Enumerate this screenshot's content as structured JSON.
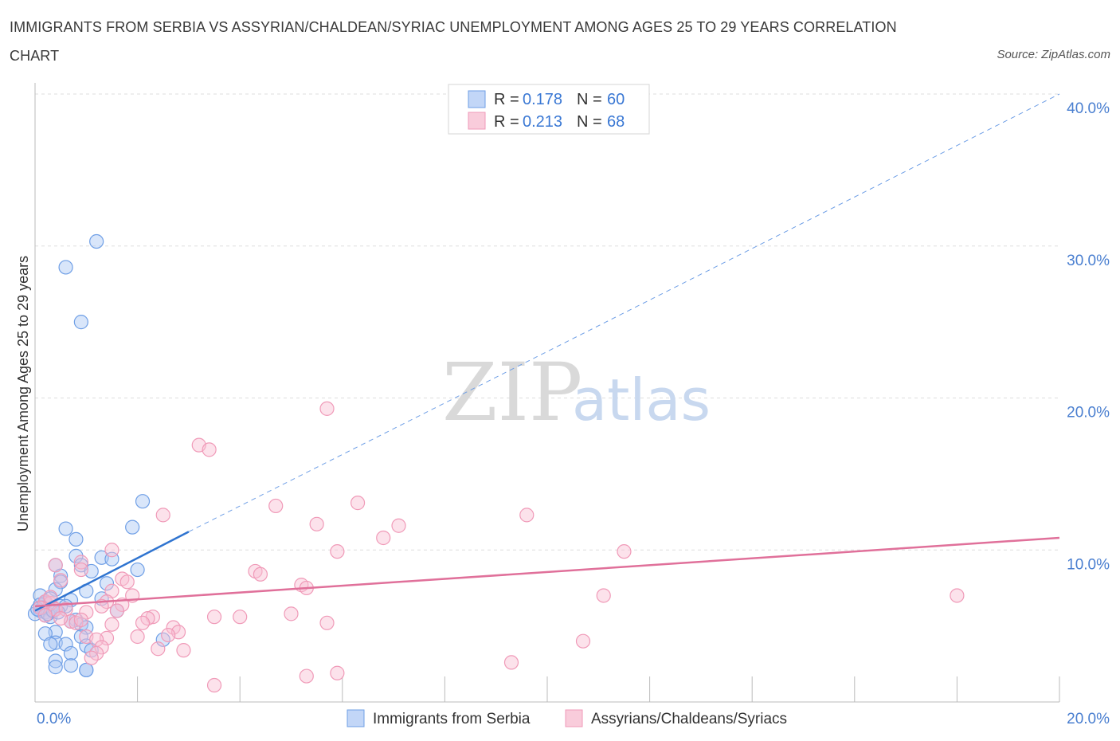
{
  "header": {
    "title": "IMMIGRANTS FROM SERBIA VS ASSYRIAN/CHALDEAN/SYRIAC UNEMPLOYMENT AMONG AGES 25 TO 29 YEARS CORRELATION CHART",
    "source": "Source: ZipAtlas.com"
  },
  "watermark": {
    "zip": "ZIP",
    "atlas": "atlas"
  },
  "legend_top": {
    "rows": [
      {
        "r_label": "R = ",
        "r_value": "0.178",
        "n_label": "N = ",
        "n_value": "60",
        "color": "#6f9fe6"
      },
      {
        "r_label": "R = ",
        "r_value": "0.213",
        "n_label": "N = ",
        "n_value": "68",
        "color": "#f09ab8"
      }
    ]
  },
  "chart_data": {
    "type": "scatter",
    "title": "IMMIGRANTS FROM SERBIA VS ASSYRIAN/CHALDEAN/SYRIAC UNEMPLOYMENT AMONG AGES 25 TO 29 YEARS CORRELATION CHART",
    "xlabel": "",
    "ylabel": "Unemployment Among Ages 25 to 29 years",
    "xlim": [
      0,
      20
    ],
    "ylim": [
      0,
      40
    ],
    "x_tick_labels": [
      "0.0%",
      "20.0%"
    ],
    "y_ticks": [
      10,
      20,
      30,
      40
    ],
    "y_tick_labels": [
      "10.0%",
      "20.0%",
      "30.0%",
      "40.0%"
    ],
    "grid": true,
    "legend_position": "bottom",
    "series": [
      {
        "name": "Immigrants from Serbia",
        "color": "#6f9fe6",
        "points": [
          [
            1.2,
            30.3
          ],
          [
            0.6,
            28.6
          ],
          [
            0.9,
            25.0
          ],
          [
            2.1,
            13.2
          ],
          [
            1.9,
            11.5
          ],
          [
            0.6,
            11.4
          ],
          [
            0.8,
            10.7
          ],
          [
            0.8,
            9.6
          ],
          [
            1.3,
            9.5
          ],
          [
            1.5,
            9.4
          ],
          [
            0.4,
            9.0
          ],
          [
            0.9,
            9.0
          ],
          [
            2.0,
            8.7
          ],
          [
            1.1,
            8.6
          ],
          [
            0.5,
            8.3
          ],
          [
            0.5,
            7.9
          ],
          [
            1.4,
            7.8
          ],
          [
            0.4,
            7.4
          ],
          [
            1.0,
            7.3
          ],
          [
            0.1,
            7.0
          ],
          [
            0.3,
            6.8
          ],
          [
            0.7,
            6.7
          ],
          [
            1.3,
            6.8
          ],
          [
            0.2,
            6.5
          ],
          [
            0.1,
            6.2
          ],
          [
            0.5,
            6.3
          ],
          [
            0.6,
            6.3
          ],
          [
            0.3,
            6.1
          ],
          [
            0.1,
            6.0
          ],
          [
            0.2,
            5.9
          ],
          [
            1.6,
            6.0
          ],
          [
            0.0,
            5.8
          ],
          [
            0.2,
            5.7
          ],
          [
            0.3,
            5.6
          ],
          [
            0.8,
            5.4
          ],
          [
            0.7,
            5.3
          ],
          [
            0.9,
            5.1
          ],
          [
            1.0,
            4.9
          ],
          [
            0.4,
            4.6
          ],
          [
            0.2,
            4.5
          ],
          [
            0.9,
            4.3
          ],
          [
            2.5,
            4.1
          ],
          [
            0.4,
            3.9
          ],
          [
            0.3,
            3.8
          ],
          [
            0.6,
            3.8
          ],
          [
            1.0,
            3.7
          ],
          [
            1.1,
            3.4
          ],
          [
            0.7,
            3.2
          ],
          [
            0.4,
            2.7
          ],
          [
            0.4,
            2.3
          ],
          [
            0.7,
            2.4
          ],
          [
            1.0,
            2.1
          ],
          [
            1.0,
            2.1
          ],
          [
            0.1,
            6.4
          ],
          [
            0.2,
            6.6
          ],
          [
            0.15,
            6.2
          ],
          [
            0.25,
            5.8
          ],
          [
            0.05,
            6.1
          ],
          [
            0.35,
            6.0
          ],
          [
            0.45,
            5.9
          ]
        ]
      },
      {
        "name": "Assyrians/Chaldeans/Syriacs",
        "color": "#f09ab8",
        "points": [
          [
            5.7,
            19.3
          ],
          [
            3.2,
            16.9
          ],
          [
            3.4,
            16.6
          ],
          [
            6.3,
            13.1
          ],
          [
            4.7,
            12.9
          ],
          [
            9.6,
            12.3
          ],
          [
            2.5,
            12.3
          ],
          [
            5.5,
            11.7
          ],
          [
            7.1,
            11.6
          ],
          [
            6.8,
            10.8
          ],
          [
            5.9,
            9.9
          ],
          [
            11.5,
            9.9
          ],
          [
            1.5,
            10.0
          ],
          [
            0.4,
            9.0
          ],
          [
            0.9,
            9.2
          ],
          [
            0.9,
            8.7
          ],
          [
            4.3,
            8.6
          ],
          [
            4.4,
            8.4
          ],
          [
            1.7,
            8.1
          ],
          [
            0.5,
            8.0
          ],
          [
            1.8,
            7.9
          ],
          [
            5.2,
            7.7
          ],
          [
            5.3,
            7.5
          ],
          [
            1.5,
            7.3
          ],
          [
            1.9,
            7.0
          ],
          [
            11.1,
            7.0
          ],
          [
            18.0,
            7.0
          ],
          [
            1.4,
            6.6
          ],
          [
            1.7,
            6.4
          ],
          [
            1.3,
            6.3
          ],
          [
            0.2,
            6.6
          ],
          [
            0.3,
            6.5
          ],
          [
            0.1,
            6.2
          ],
          [
            0.4,
            6.1
          ],
          [
            5.0,
            5.8
          ],
          [
            2.3,
            5.6
          ],
          [
            2.2,
            5.5
          ],
          [
            3.5,
            5.6
          ],
          [
            4.0,
            5.6
          ],
          [
            0.7,
            5.3
          ],
          [
            0.8,
            5.2
          ],
          [
            2.1,
            5.2
          ],
          [
            1.5,
            5.1
          ],
          [
            5.7,
            5.2
          ],
          [
            2.7,
            4.9
          ],
          [
            2.8,
            4.6
          ],
          [
            2.6,
            4.4
          ],
          [
            1.0,
            4.3
          ],
          [
            2.0,
            4.3
          ],
          [
            1.4,
            4.2
          ],
          [
            1.2,
            4.1
          ],
          [
            10.7,
            4.0
          ],
          [
            1.3,
            3.6
          ],
          [
            2.4,
            3.5
          ],
          [
            2.9,
            3.4
          ],
          [
            1.2,
            3.2
          ],
          [
            1.1,
            2.9
          ],
          [
            9.3,
            2.6
          ],
          [
            5.9,
            1.9
          ],
          [
            5.3,
            1.7
          ],
          [
            3.5,
            1.1
          ],
          [
            0.3,
            6.9
          ],
          [
            0.6,
            6.1
          ],
          [
            0.5,
            5.5
          ],
          [
            1.0,
            5.9
          ],
          [
            0.2,
            5.7
          ],
          [
            0.9,
            5.4
          ],
          [
            1.6,
            6.0
          ]
        ]
      }
    ],
    "trend_lines": [
      {
        "series": "Immigrants from Serbia",
        "x": [
          0,
          3.0
        ],
        "y": [
          6.0,
          11.2
        ],
        "extension_x": [
          3.0,
          20
        ],
        "extension_y": [
          11.2,
          40.0
        ]
      },
      {
        "series": "Assyrians/Chaldeans/Syriacs",
        "x": [
          0,
          20
        ],
        "y": [
          6.3,
          10.8
        ]
      }
    ]
  }
}
